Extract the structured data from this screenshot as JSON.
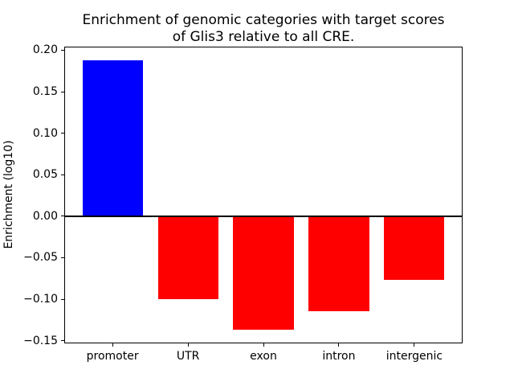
{
  "chart_data": {
    "type": "bar",
    "title": "Enrichment of genomic categories with target scores\nof Glis3 relative to all CRE.",
    "title_lines": [
      "Enrichment of genomic categories with target scores",
      "of Glis3 relative to all CRE."
    ],
    "xlabel": "",
    "ylabel": "Enrichment (log10)",
    "categories": [
      "promoter",
      "UTR",
      "exon",
      "intron",
      "intergenic"
    ],
    "values": [
      0.188,
      -0.1,
      -0.137,
      -0.115,
      -0.077
    ],
    "bar_colors": [
      "#0000ff",
      "#ff0000",
      "#ff0000",
      "#ff0000",
      "#ff0000"
    ],
    "positive_color": "#0000ff",
    "negative_color": "#ff0000",
    "bar_width_fraction": 0.8,
    "ylim": [
      -0.15325,
      0.20425
    ],
    "xlim": [
      -0.64,
      4.64
    ],
    "yticks": [
      0.2,
      0.15,
      0.1,
      0.05,
      0.0,
      -0.05,
      -0.1,
      -0.15
    ],
    "ytick_labels": [
      "0.20",
      "0.15",
      "0.10",
      "0.05",
      "0.00",
      "−0.05",
      "−0.10",
      "−0.15"
    ],
    "grid": false,
    "legend": null,
    "zero_line": true,
    "zero_line_color": "#000000",
    "background_color": "#ffffff"
  }
}
